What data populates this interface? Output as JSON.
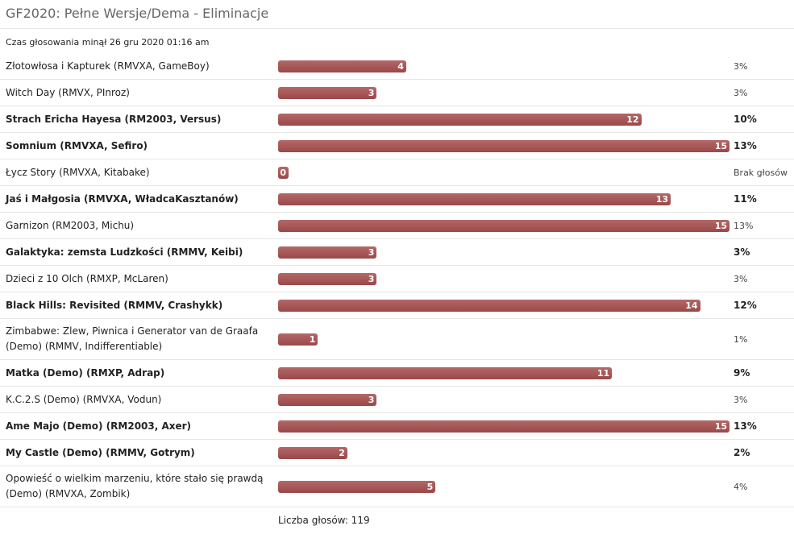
{
  "title": "GF2020: Pełne Wersje/Dema - Eliminacje",
  "closed": "Czas głosowania minął 26 gru 2020 01:16 am",
  "options": [
    {
      "label": "Złotowłosa i Kapturek (RMVXA, GameBoy)",
      "votes": 4,
      "percent": "3%",
      "bold": false
    },
    {
      "label": "Witch Day (RMVX, PInroz)",
      "votes": 3,
      "percent": "3%",
      "bold": false
    },
    {
      "label": "Strach Ericha Hayesa (RM2003, Versus)",
      "votes": 12,
      "percent": "10%",
      "bold": true
    },
    {
      "label": "Somnium (RMVXA, Sefiro)",
      "votes": 15,
      "percent": "13%",
      "bold": true
    },
    {
      "label": "Łycz Story (RMVXA, Kitabake)",
      "votes": 0,
      "percent": "Brak głosów",
      "bold": false
    },
    {
      "label": "Jaś i Małgosia (RMVXA, WładcaKasztanów)",
      "votes": 13,
      "percent": "11%",
      "bold": true
    },
    {
      "label": "Garnizon (RM2003, Michu)",
      "votes": 15,
      "percent": "13%",
      "bold": false
    },
    {
      "label": "Galaktyka: zemsta Ludzkości (RMMV, Keibi)",
      "votes": 3,
      "percent": "3%",
      "bold": true
    },
    {
      "label": "Dzieci z 10 Olch (RMXP, McLaren)",
      "votes": 3,
      "percent": "3%",
      "bold": false
    },
    {
      "label": "Black Hills: Revisited (RMMV, Crashykk)",
      "votes": 14,
      "percent": "12%",
      "bold": true
    },
    {
      "label": "Zimbabwe: Zlew, Piwnica i Generator van de Graafa (Demo) (RMMV, Indifferentiable)",
      "votes": 1,
      "percent": "1%",
      "bold": false
    },
    {
      "label": "Matka (Demo) (RMXP, Adrap)",
      "votes": 11,
      "percent": "9%",
      "bold": true
    },
    {
      "label": "K.C.2.S (Demo) (RMVXA, Vodun)",
      "votes": 3,
      "percent": "3%",
      "bold": false
    },
    {
      "label": "Ame Majo (Demo) (RM2003, Axer)",
      "votes": 15,
      "percent": "13%",
      "bold": true
    },
    {
      "label": "My Castle (Demo) (RMMV, Gotrym)",
      "votes": 2,
      "percent": "2%",
      "bold": true
    },
    {
      "label": "Opowieść o wielkim marzeniu, które stało się prawdą (Demo) (RMVXA, Zombik)",
      "votes": 5,
      "percent": "4%",
      "bold": false
    }
  ],
  "total": "Liczba głosów: 119"
}
